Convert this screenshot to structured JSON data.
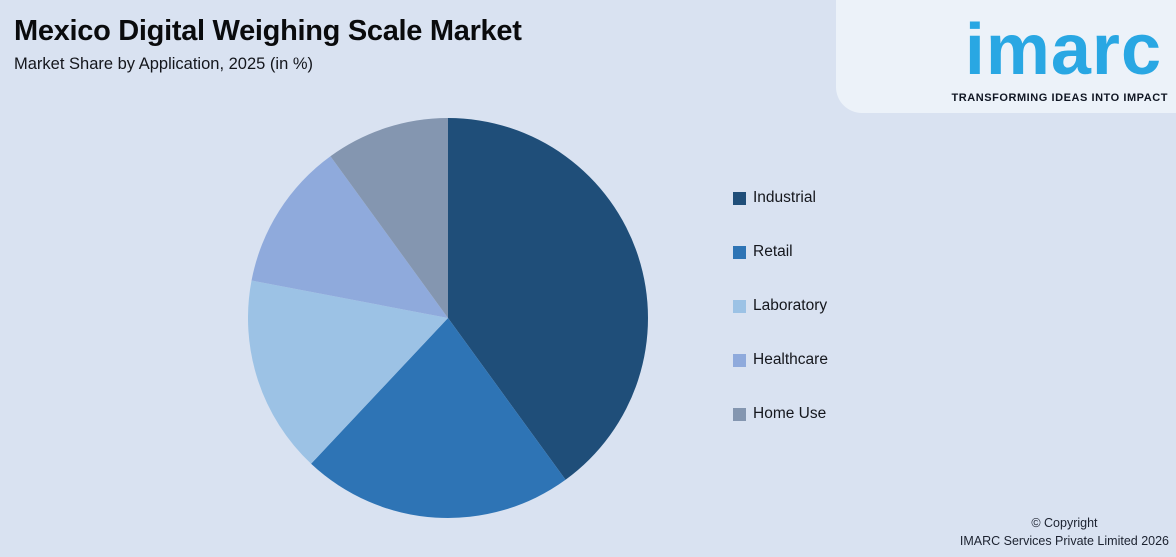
{
  "header": {
    "title": "Mexico Digital Weighing Scale Market",
    "subtitle": "Market Share by Application, 2025 (in %)"
  },
  "logo": {
    "wordmark": "imarc",
    "tagline": "TRANSFORMING IDEAS INTO IMPACT",
    "brand_color": "#29A7E3"
  },
  "footer": {
    "copyright_line1": "© Copyright",
    "copyright_line2": "IMARC Services Private Limited 2026"
  },
  "chart_data": {
    "type": "pie",
    "title": "Mexico Digital Weighing Scale Market",
    "subtitle": "Market Share by Application, 2025 (in %)",
    "unit": "%",
    "categories": [
      "Industrial",
      "Retail",
      "Laboratory",
      "Healthcare",
      "Home Use"
    ],
    "values": [
      40,
      22,
      16,
      12,
      10
    ],
    "colors": [
      "#1F4E79",
      "#2E74B5",
      "#9CC2E5",
      "#8FAADC",
      "#8496B0"
    ],
    "background_color": "#D9E2F1",
    "start_angle_deg": 0,
    "direction": "clockwise",
    "legend_position": "right",
    "data_labels": false
  }
}
